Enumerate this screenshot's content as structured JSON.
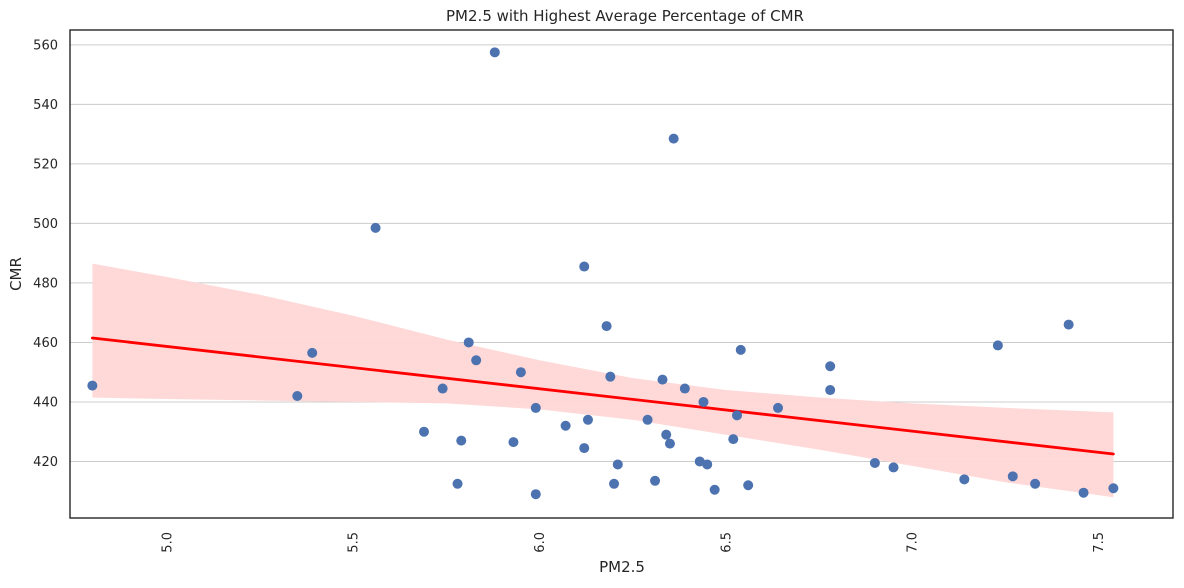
{
  "chart_data": {
    "type": "scatter",
    "title": "PM2.5 with Highest Average Percentage of CMR",
    "xlabel": "PM2.5",
    "ylabel": "CMR",
    "xlim": [
      4.74,
      7.7
    ],
    "ylim": [
      401,
      565
    ],
    "x_ticks": [
      "5.0",
      "5.5",
      "6.0",
      "6.5",
      "7.0",
      "7.5"
    ],
    "y_ticks": [
      "420",
      "440",
      "460",
      "480",
      "500",
      "520",
      "540",
      "560"
    ],
    "grid": "horizontal",
    "colors": {
      "points": "#4c72b0",
      "regression_line": "#ff0000",
      "confidence_band": "#ffd6d6"
    },
    "points": [
      {
        "x": 4.8,
        "y": 445.5
      },
      {
        "x": 5.35,
        "y": 442
      },
      {
        "x": 5.39,
        "y": 456.5
      },
      {
        "x": 5.56,
        "y": 498.5
      },
      {
        "x": 5.69,
        "y": 430
      },
      {
        "x": 5.74,
        "y": 444.5
      },
      {
        "x": 5.78,
        "y": 412.5
      },
      {
        "x": 5.79,
        "y": 427
      },
      {
        "x": 5.81,
        "y": 460
      },
      {
        "x": 5.83,
        "y": 454
      },
      {
        "x": 5.88,
        "y": 557.5
      },
      {
        "x": 5.93,
        "y": 426.5
      },
      {
        "x": 5.95,
        "y": 450
      },
      {
        "x": 5.99,
        "y": 438
      },
      {
        "x": 5.99,
        "y": 409
      },
      {
        "x": 6.07,
        "y": 432
      },
      {
        "x": 6.12,
        "y": 485.5
      },
      {
        "x": 6.12,
        "y": 424.5
      },
      {
        "x": 6.13,
        "y": 434
      },
      {
        "x": 6.18,
        "y": 465.5
      },
      {
        "x": 6.19,
        "y": 448.5
      },
      {
        "x": 6.2,
        "y": 412.5
      },
      {
        "x": 6.21,
        "y": 419
      },
      {
        "x": 6.29,
        "y": 434
      },
      {
        "x": 6.31,
        "y": 413.5
      },
      {
        "x": 6.33,
        "y": 447.5
      },
      {
        "x": 6.34,
        "y": 429
      },
      {
        "x": 6.35,
        "y": 426
      },
      {
        "x": 6.36,
        "y": 528.5
      },
      {
        "x": 6.39,
        "y": 444.5
      },
      {
        "x": 6.43,
        "y": 420
      },
      {
        "x": 6.44,
        "y": 440
      },
      {
        "x": 6.45,
        "y": 419
      },
      {
        "x": 6.47,
        "y": 410.5
      },
      {
        "x": 6.52,
        "y": 427.5
      },
      {
        "x": 6.53,
        "y": 435.5
      },
      {
        "x": 6.54,
        "y": 457.5
      },
      {
        "x": 6.56,
        "y": 412
      },
      {
        "x": 6.64,
        "y": 438
      },
      {
        "x": 6.78,
        "y": 452
      },
      {
        "x": 6.78,
        "y": 444
      },
      {
        "x": 6.9,
        "y": 419.5
      },
      {
        "x": 6.95,
        "y": 418
      },
      {
        "x": 7.14,
        "y": 414
      },
      {
        "x": 7.23,
        "y": 459
      },
      {
        "x": 7.27,
        "y": 415
      },
      {
        "x": 7.33,
        "y": 412.5
      },
      {
        "x": 7.42,
        "y": 466
      },
      {
        "x": 7.46,
        "y": 409.5
      },
      {
        "x": 7.54,
        "y": 411
      }
    ],
    "regression_line": [
      {
        "x": 4.8,
        "y": 461.5
      },
      {
        "x": 7.54,
        "y": 422.5
      }
    ],
    "confidence_band": {
      "x": [
        4.8,
        5.0,
        5.25,
        5.5,
        5.75,
        6.0,
        6.25,
        6.5,
        6.75,
        7.0,
        7.25,
        7.54
      ],
      "upper": [
        486.5,
        482,
        476,
        469,
        461,
        454,
        448,
        444,
        441.5,
        439.5,
        438,
        436.5
      ],
      "lower": [
        441.5,
        441,
        440.5,
        440,
        439.5,
        437.5,
        434,
        429,
        424,
        418.5,
        413,
        408
      ]
    }
  }
}
